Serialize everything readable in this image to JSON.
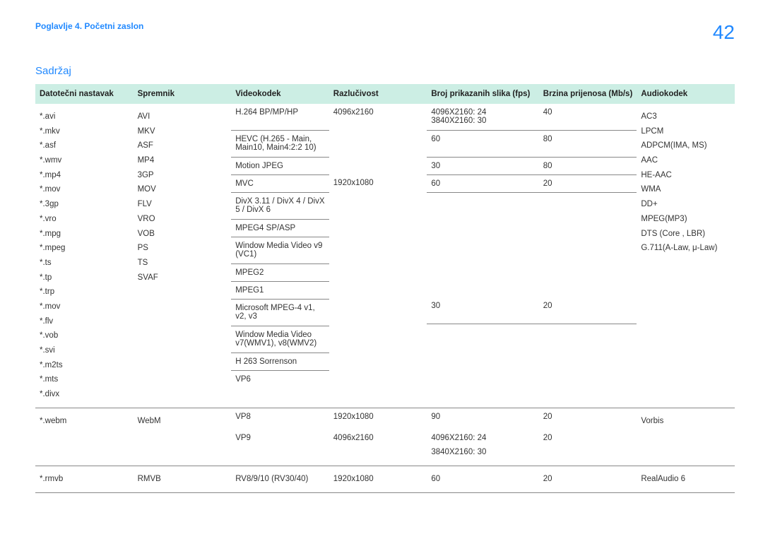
{
  "header": {
    "breadcrumb": "Poglavlje 4. Početni zaslon",
    "page_number": "42"
  },
  "section_title": "Sadržaj",
  "table": {
    "columns": [
      "Datotečni nastavak",
      "Spremnik",
      "Videokodek",
      "Razlučivost",
      "Broj prikazanih slika (fps)",
      "Brzina prijenosa (Mb/s)",
      "Audiokodek"
    ],
    "row1": {
      "extensions": [
        "*.avi",
        "*.mkv",
        "*.asf",
        "*.wmv",
        "*.mp4",
        "*.mov",
        "*.3gp",
        "*.vro",
        "*.mpg",
        "*.mpeg",
        "*.ts",
        "*.tp",
        "*.trp",
        "*.mov",
        "*.flv",
        "*.vob",
        "*.svi",
        "*.m2ts",
        "*.mts",
        "*.divx"
      ],
      "containers": [
        "AVI",
        "MKV",
        "ASF",
        "MP4",
        "3GP",
        "MOV",
        "FLV",
        "VRO",
        "VOB",
        "PS",
        "TS",
        "SVAF"
      ],
      "video_groups": [
        {
          "codecs": [
            "H.264 BP/MP/HP"
          ],
          "resolution": "4096x2160",
          "fps": [
            "4096X2160: 24",
            "3840X2160: 30"
          ],
          "bitrate": "40"
        },
        {
          "codecs": [
            "HEVC (H.265 - Main, Main10, Main4:2:2 10)"
          ],
          "resolution": "",
          "fps": [
            "60"
          ],
          "bitrate": "80"
        },
        {
          "codecs": [
            "Motion JPEG"
          ],
          "resolution": "",
          "fps": [
            "30"
          ],
          "bitrate": "80"
        },
        {
          "codecs": [
            "MVC"
          ],
          "resolution": "1920x1080",
          "fps": [
            "60"
          ],
          "bitrate": "20"
        },
        {
          "codecs": [
            "DivX 3.11 / DivX 4 / DivX 5 / DivX 6"
          ],
          "resolution": "",
          "fps": [],
          "bitrate": ""
        },
        {
          "codecs": [
            "MPEG4 SP/ASP"
          ],
          "resolution": "",
          "fps": [],
          "bitrate": ""
        },
        {
          "codecs": [
            "Window Media Video v9 (VC1)"
          ],
          "resolution": "",
          "fps": [],
          "bitrate": ""
        },
        {
          "codecs": [
            "MPEG2"
          ],
          "resolution": "",
          "fps": [],
          "bitrate": ""
        },
        {
          "codecs": [
            "MPEG1"
          ],
          "resolution": "",
          "fps": [],
          "bitrate": ""
        },
        {
          "codecs": [
            "Microsoft MPEG-4 v1, v2, v3"
          ],
          "resolution": "",
          "fps": [
            "30"
          ],
          "bitrate": "20"
        },
        {
          "codecs": [
            "Window Media Video v7(WMV1), v8(WMV2)"
          ],
          "resolution": "",
          "fps": [],
          "bitrate": ""
        },
        {
          "codecs": [
            "H 263 Sorrenson"
          ],
          "resolution": "",
          "fps": [],
          "bitrate": ""
        },
        {
          "codecs": [
            "VP6"
          ],
          "resolution": "",
          "fps": [],
          "bitrate": ""
        }
      ],
      "audio": [
        "AC3",
        "LPCM",
        "ADPCM(IMA, MS)",
        "AAC",
        "HE-AAC",
        "WMA",
        "DD+",
        "MPEG(MP3)",
        "DTS (Core , LBR)",
        "G.711(A-Law, μ-Law)"
      ]
    },
    "row2a": {
      "extension": "*.webm",
      "container": "WebM",
      "codec": "VP8",
      "resolution": "1920x1080",
      "fps": "90",
      "bitrate": "20",
      "audio": "Vorbis"
    },
    "row2b": {
      "codec": "VP9",
      "resolution": "4096x2160",
      "fps": [
        "4096X2160: 24",
        "3840X2160: 30"
      ],
      "bitrate": "20"
    },
    "row3": {
      "extension": "*.rmvb",
      "container": "RMVB",
      "codec": "RV8/9/10 (RV30/40)",
      "resolution": "1920x1080",
      "fps": "60",
      "bitrate": "20",
      "audio": "RealAudio 6"
    }
  },
  "colors": {
    "accent": "#2189ff",
    "header_bg": "#cceee4",
    "border": "#888888"
  }
}
